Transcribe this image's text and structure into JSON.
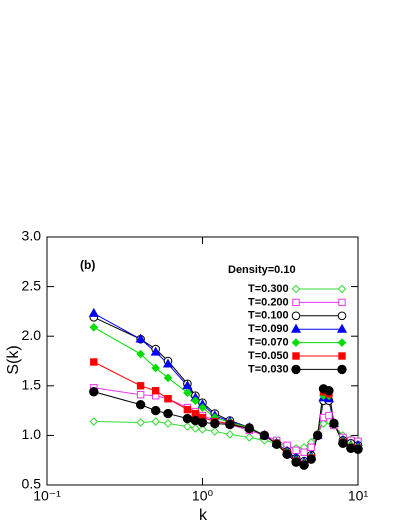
{
  "chart_data": {
    "type": "line",
    "annotations": [
      "(b)",
      "Density=0.10"
    ],
    "xlabel": "k",
    "ylabel": "S(k)",
    "xscale": "log",
    "xlim": [
      0.1,
      10
    ],
    "xticks": [
      {
        "value": 0.1,
        "label": "10⁻¹"
      },
      {
        "value": 1,
        "label": "10⁰"
      },
      {
        "value": 10,
        "label": "10¹"
      }
    ],
    "ylim": [
      0.5,
      3
    ],
    "yticks": [
      0.5,
      {
        "value": 1,
        "label": "1.0"
      },
      1.5,
      {
        "value": 2,
        "label": "2.0"
      },
      2.5,
      {
        "value": 3,
        "label": "3.0"
      }
    ],
    "x": [
      0.2,
      0.4,
      0.5,
      0.6,
      0.8,
      0.9,
      1.0,
      1.2,
      1.5,
      2,
      2.5,
      3,
      3.5,
      4,
      4.5,
      5,
      5.5,
      6,
      6.5,
      7,
      8,
      9,
      10
    ],
    "series": [
      {
        "name": "T=0.300",
        "color": "#33dd33",
        "marker": "diamond",
        "filled": false,
        "values": [
          1.14,
          1.13,
          1.14,
          1.12,
          1.09,
          1.07,
          1.06,
          1.04,
          1.01,
          0.98,
          0.95,
          0.92,
          0.89,
          0.87,
          0.88,
          0.93,
          1.02,
          1.12,
          1.15,
          1.1,
          1.0,
          0.96,
          0.95
        ]
      },
      {
        "name": "T=0.200",
        "color": "#ee33ee",
        "marker": "square",
        "filled": false,
        "values": [
          1.48,
          1.41,
          1.4,
          1.37,
          1.28,
          1.24,
          1.2,
          1.15,
          1.11,
          1.05,
          1.0,
          0.95,
          0.9,
          0.85,
          0.83,
          0.88,
          1.0,
          1.18,
          1.2,
          1.1,
          0.98,
          0.95,
          0.94
        ]
      },
      {
        "name": "T=0.100",
        "color": "#000000",
        "marker": "circle",
        "filled": false,
        "values": [
          2.19,
          1.97,
          1.87,
          1.75,
          1.52,
          1.4,
          1.33,
          1.22,
          1.15,
          1.08,
          1.0,
          0.92,
          0.84,
          0.77,
          0.74,
          0.8,
          1.0,
          1.35,
          1.35,
          1.12,
          0.95,
          0.92,
          0.9
        ]
      },
      {
        "name": "T=0.090",
        "color": "#0000ff",
        "marker": "triangle",
        "filled": true,
        "values": [
          2.23,
          1.97,
          1.84,
          1.72,
          1.5,
          1.38,
          1.31,
          1.2,
          1.14,
          1.08,
          1.0,
          0.92,
          0.84,
          0.77,
          0.73,
          0.79,
          1.0,
          1.38,
          1.37,
          1.12,
          0.95,
          0.9,
          0.9
        ]
      },
      {
        "name": "T=0.070",
        "color": "#00dd00",
        "marker": "diamond",
        "filled": true,
        "values": [
          2.09,
          1.82,
          1.68,
          1.58,
          1.43,
          1.35,
          1.28,
          1.18,
          1.13,
          1.08,
          1.0,
          0.92,
          0.83,
          0.75,
          0.72,
          0.78,
          1.0,
          1.4,
          1.4,
          1.12,
          0.94,
          0.9,
          0.88
        ]
      },
      {
        "name": "T=0.050",
        "color": "#ff0000",
        "marker": "square",
        "filled": true,
        "values": [
          1.74,
          1.5,
          1.45,
          1.37,
          1.26,
          1.22,
          1.18,
          1.14,
          1.12,
          1.07,
          1.0,
          0.92,
          0.82,
          0.74,
          0.71,
          0.77,
          1.0,
          1.44,
          1.42,
          1.12,
          0.93,
          0.88,
          0.87
        ]
      },
      {
        "name": "T=0.030",
        "color": "#000000",
        "marker": "circle",
        "filled": true,
        "values": [
          1.44,
          1.31,
          1.25,
          1.22,
          1.17,
          1.15,
          1.13,
          1.12,
          1.11,
          1.07,
          1.0,
          0.91,
          0.81,
          0.73,
          0.7,
          0.76,
          1.0,
          1.47,
          1.45,
          1.12,
          0.92,
          0.87,
          0.86
        ]
      }
    ]
  }
}
